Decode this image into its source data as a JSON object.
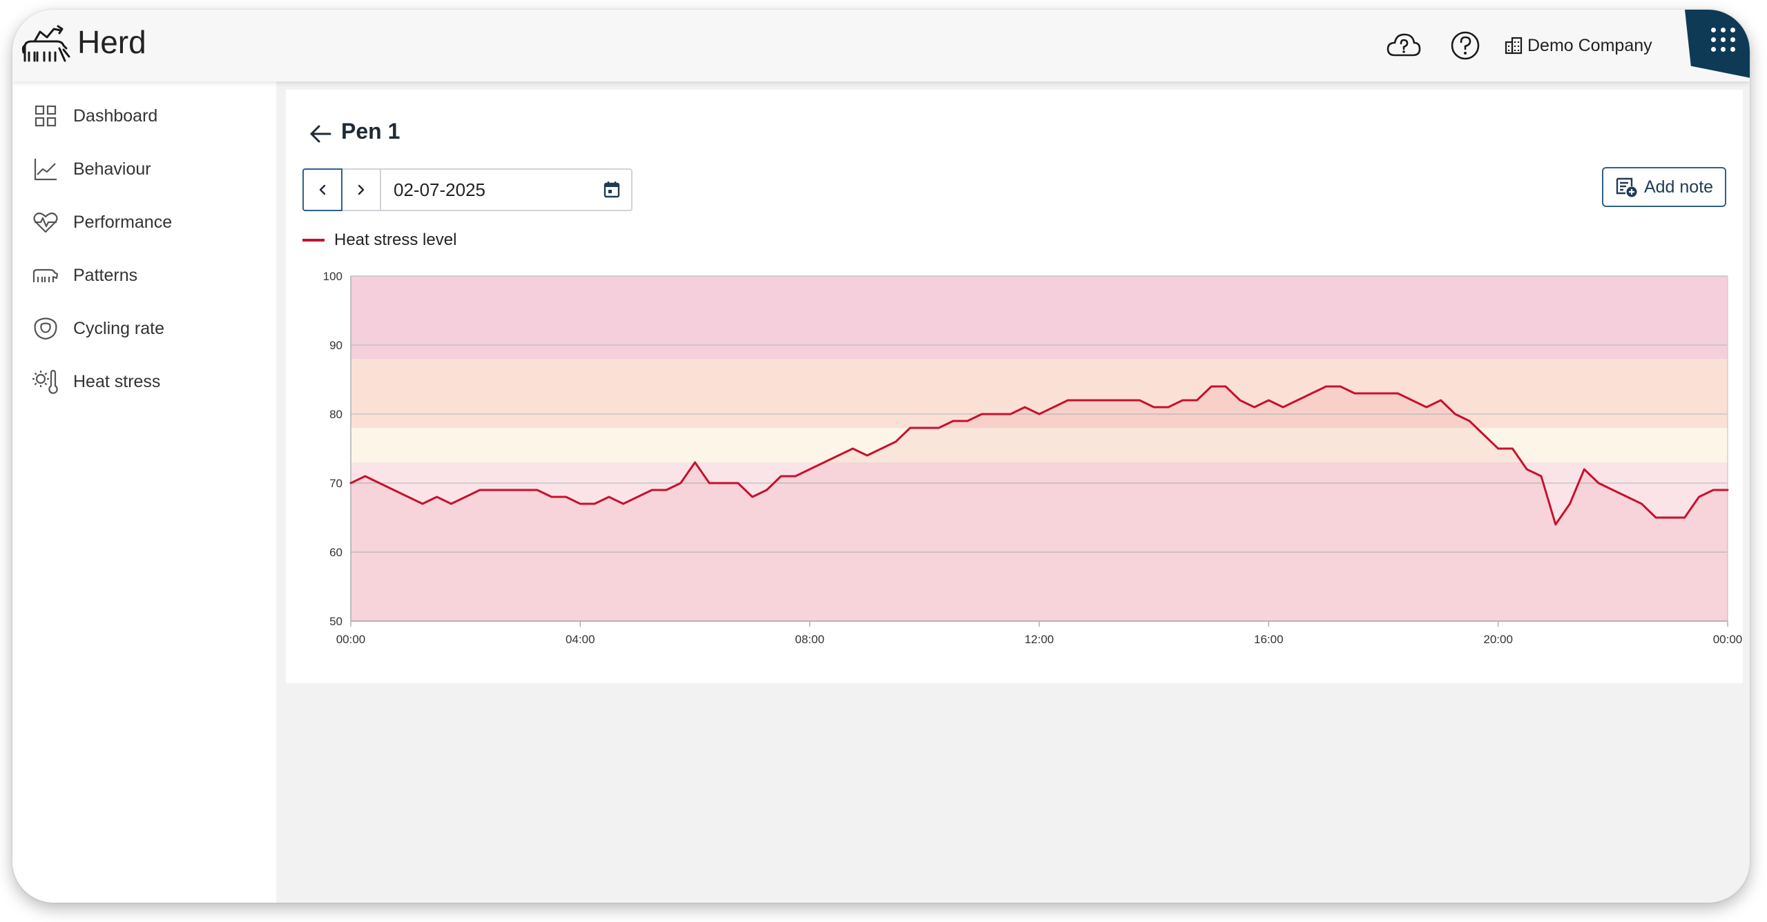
{
  "app": {
    "brand": "Herd",
    "company": "Demo Company",
    "icons": {
      "logo": "herd-logo",
      "cloud": "cloud-question-icon",
      "help": "help-icon",
      "company": "building-icon",
      "apps": "apps-grid-icon"
    },
    "accent": "#0e3a56"
  },
  "sidebar": {
    "items": [
      {
        "label": "Dashboard",
        "icon": "dashboard-icon"
      },
      {
        "label": "Behaviour",
        "icon": "line-chart-icon"
      },
      {
        "label": "Performance",
        "icon": "heart-pulse-icon"
      },
      {
        "label": "Patterns",
        "icon": "cows-icon"
      },
      {
        "label": "Cycling rate",
        "icon": "cycle-icon"
      },
      {
        "label": "Heat stress",
        "icon": "heat-stress-icon"
      }
    ]
  },
  "page": {
    "title": "Pen 1",
    "date": "02-07-2025",
    "add_note_label": "Add note"
  },
  "chart_data": {
    "type": "line",
    "legend": "top-left",
    "series": [
      {
        "name": "Heat stress level",
        "color": "#c8102e",
        "x": [
          "00:00",
          "00:15",
          "00:30",
          "00:45",
          "01:00",
          "01:15",
          "01:30",
          "01:45",
          "02:00",
          "02:15",
          "02:30",
          "02:45",
          "03:00",
          "03:15",
          "03:30",
          "03:45",
          "04:00",
          "04:15",
          "04:30",
          "04:45",
          "05:00",
          "05:15",
          "05:30",
          "05:45",
          "06:00",
          "06:15",
          "06:30",
          "06:45",
          "07:00",
          "07:15",
          "07:30",
          "07:45",
          "08:00",
          "08:15",
          "08:30",
          "08:45",
          "09:00",
          "09:15",
          "09:30",
          "09:45",
          "10:00",
          "10:15",
          "10:30",
          "10:45",
          "11:00",
          "11:15",
          "11:30",
          "11:45",
          "12:00",
          "12:15",
          "12:30",
          "12:45",
          "13:00",
          "13:15",
          "13:30",
          "13:45",
          "14:00",
          "14:15",
          "14:30",
          "14:45",
          "15:00",
          "15:15",
          "15:30",
          "15:45",
          "16:00",
          "16:15",
          "16:30",
          "16:45",
          "17:00",
          "17:15",
          "17:30",
          "17:45",
          "18:00",
          "18:15",
          "18:30",
          "18:45",
          "19:00",
          "19:15",
          "19:30",
          "19:45",
          "20:00",
          "20:15",
          "20:30",
          "20:45",
          "21:00",
          "21:15",
          "21:30",
          "21:45",
          "22:00",
          "22:15",
          "22:30",
          "22:45",
          "23:00",
          "23:15",
          "23:30",
          "23:45",
          "24:00"
        ],
        "values": [
          70,
          71,
          70,
          69,
          68,
          67,
          68,
          67,
          68,
          69,
          69,
          69,
          69,
          69,
          68,
          68,
          67,
          67,
          68,
          67,
          68,
          69,
          69,
          70,
          73,
          70,
          70,
          70,
          68,
          69,
          71,
          71,
          72,
          73,
          74,
          75,
          74,
          75,
          76,
          78,
          78,
          78,
          79,
          79,
          80,
          80,
          80,
          81,
          80,
          81,
          82,
          82,
          82,
          82,
          82,
          82,
          81,
          81,
          82,
          82,
          84,
          84,
          82,
          81,
          82,
          81,
          82,
          83,
          84,
          84,
          83,
          83,
          83,
          83,
          82,
          81,
          82,
          80,
          79,
          77,
          75,
          75,
          72,
          71,
          64,
          67,
          72,
          70,
          69,
          68,
          67,
          65,
          65,
          65,
          68,
          69,
          69
        ]
      }
    ],
    "xticks": [
      "00:00",
      "04:00",
      "08:00",
      "12:00",
      "16:00",
      "20:00",
      "00:00"
    ],
    "yticks": [
      50,
      60,
      70,
      80,
      90,
      100
    ],
    "xlim": [
      0,
      24
    ],
    "ylim": [
      50,
      100
    ],
    "grid": true,
    "bands": [
      {
        "from": 88,
        "to": 100,
        "color": "#f5cfdb"
      },
      {
        "from": 78,
        "to": 88,
        "color": "#fbe0d6"
      },
      {
        "from": 73,
        "to": 78,
        "color": "#fdf6e8"
      },
      {
        "from": 50,
        "to": 73,
        "color": "#fae4e8"
      }
    ]
  }
}
